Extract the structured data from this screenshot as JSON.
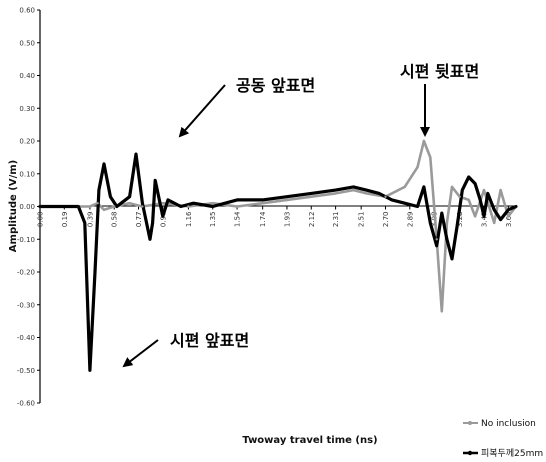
{
  "chart_data": {
    "type": "line",
    "title": "",
    "xlabel": "Twoway travel time (ns)",
    "ylabel": "Amplitude (V/m)",
    "xlim": [
      0,
      3.72
    ],
    "ylim": [
      -0.6,
      0.6
    ],
    "grid": false,
    "legend_position": "bottom-right",
    "x_tick_labels": [
      "0.00",
      "0.19",
      "0.39",
      "0.58",
      "0.77",
      "0.96",
      "1.16",
      "1.35",
      "1.54",
      "1.74",
      "1.93",
      "2.12",
      "2.31",
      "2.51",
      "2.70",
      "2.89",
      "3.08",
      "3.28",
      "3.47",
      "3.66"
    ],
    "y_tick_labels": [
      "0.60",
      "0.50",
      "0.40",
      "0.30",
      "0.20",
      "0.10",
      "0.00",
      "-0.10",
      "-0.20",
      "-0.30",
      "-0.40",
      "-0.50",
      "-0.60"
    ],
    "series": [
      {
        "name": "No inclusion",
        "color": "#9a9a9a",
        "x": [
          0.0,
          0.3,
          0.39,
          0.45,
          0.5,
          0.58,
          0.7,
          0.8,
          0.96,
          1.16,
          1.35,
          1.54,
          1.74,
          1.93,
          2.12,
          2.31,
          2.45,
          2.55,
          2.7,
          2.85,
          2.95,
          3.0,
          3.05,
          3.1,
          3.14,
          3.18,
          3.22,
          3.28,
          3.35,
          3.4,
          3.47,
          3.55,
          3.6,
          3.66,
          3.72
        ],
        "y": [
          0.0,
          0.0,
          0.0,
          0.01,
          -0.01,
          0.0,
          0.01,
          0.0,
          0.01,
          0.0,
          0.01,
          0.0,
          0.01,
          0.02,
          0.03,
          0.04,
          0.05,
          0.04,
          0.03,
          0.06,
          0.12,
          0.2,
          0.15,
          -0.1,
          -0.32,
          -0.05,
          0.06,
          0.03,
          0.02,
          -0.03,
          0.05,
          -0.05,
          0.05,
          -0.03,
          0.0
        ]
      },
      {
        "name": "피복두께25mm",
        "color": "#000000",
        "x": [
          0.0,
          0.3,
          0.35,
          0.39,
          0.43,
          0.46,
          0.5,
          0.55,
          0.6,
          0.7,
          0.75,
          0.8,
          0.86,
          0.88,
          0.9,
          0.96,
          1.0,
          1.1,
          1.2,
          1.35,
          1.54,
          1.74,
          1.93,
          2.12,
          2.31,
          2.45,
          2.55,
          2.65,
          2.75,
          2.85,
          2.95,
          3.0,
          3.05,
          3.1,
          3.14,
          3.18,
          3.22,
          3.26,
          3.3,
          3.35,
          3.4,
          3.44,
          3.47,
          3.5,
          3.55,
          3.6,
          3.66,
          3.72
        ],
        "y": [
          0.0,
          0.0,
          -0.05,
          -0.5,
          -0.2,
          0.05,
          0.13,
          0.03,
          0.0,
          0.03,
          0.16,
          0.01,
          -0.1,
          -0.05,
          0.08,
          -0.03,
          0.02,
          0.0,
          0.01,
          0.0,
          0.02,
          0.02,
          0.03,
          0.04,
          0.05,
          0.06,
          0.05,
          0.04,
          0.02,
          0.01,
          0.0,
          0.06,
          -0.05,
          -0.12,
          -0.02,
          -0.1,
          -0.16,
          -0.06,
          0.05,
          0.09,
          0.07,
          0.02,
          -0.03,
          0.04,
          -0.01,
          -0.04,
          -0.01,
          0.0
        ]
      }
    ],
    "annotations": [
      {
        "label": "공동 앞표면"
      },
      {
        "label": "시편 뒷표면"
      },
      {
        "label": "시편 앞표면"
      }
    ]
  }
}
